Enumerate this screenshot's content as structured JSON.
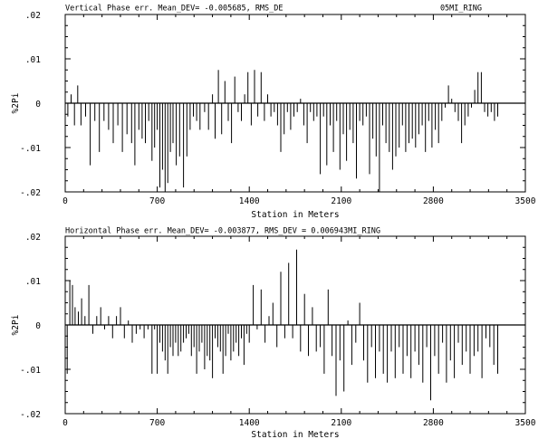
{
  "chart_data": [
    {
      "type": "bar",
      "title": "Vertical   Phase err.   Mean_DEV= -0.005685, RMS_DE",
      "title_right": "05MI_RING",
      "xlabel": "Station in Meters",
      "ylabel": "%2Pi",
      "xlim": [
        0,
        3500
      ],
      "ylim": [
        -0.02,
        0.02
      ],
      "xticks": [
        0,
        700,
        1400,
        2100,
        2800,
        3500
      ],
      "xtick_labels": [
        "0",
        "700",
        "1400",
        "2100",
        "2800",
        "3500"
      ],
      "yticks": [
        0.02,
        0.01,
        0,
        -0.01,
        -0.02
      ],
      "ytick_labels": [
        ".02",
        ".01",
        "0",
        "-.01",
        "-.02"
      ],
      "grid": false,
      "x": [
        20,
        45,
        70,
        95,
        120,
        155,
        190,
        225,
        260,
        295,
        330,
        365,
        400,
        435,
        470,
        505,
        530,
        560,
        585,
        610,
        635,
        660,
        680,
        700,
        720,
        740,
        760,
        780,
        800,
        820,
        845,
        870,
        900,
        925,
        950,
        975,
        1000,
        1025,
        1060,
        1090,
        1120,
        1140,
        1165,
        1190,
        1215,
        1240,
        1265,
        1290,
        1315,
        1340,
        1365,
        1390,
        1415,
        1440,
        1465,
        1490,
        1515,
        1540,
        1565,
        1590,
        1615,
        1640,
        1665,
        1690,
        1715,
        1740,
        1765,
        1790,
        1815,
        1840,
        1865,
        1890,
        1915,
        1940,
        1965,
        1990,
        2015,
        2040,
        2065,
        2090,
        2115,
        2140,
        2165,
        2190,
        2215,
        2240,
        2265,
        2290,
        2315,
        2340,
        2365,
        2390,
        2415,
        2440,
        2465,
        2490,
        2515,
        2540,
        2565,
        2590,
        2615,
        2640,
        2665,
        2690,
        2715,
        2740,
        2765,
        2790,
        2815,
        2840,
        2865,
        2890,
        2915,
        2940,
        2965,
        2990,
        3015,
        3040,
        3065,
        3090,
        3115,
        3140,
        3165,
        3190,
        3215,
        3240,
        3265,
        3290
      ],
      "values": [
        -0.003,
        0.002,
        -0.005,
        0.004,
        -0.005,
        -0.003,
        -0.014,
        -0.004,
        -0.011,
        -0.004,
        -0.006,
        -0.009,
        -0.005,
        -0.011,
        -0.007,
        -0.009,
        -0.014,
        -0.006,
        -0.008,
        -0.009,
        -0.004,
        -0.013,
        -0.01,
        -0.006,
        -0.019,
        -0.015,
        -0.02,
        -0.018,
        -0.011,
        -0.009,
        -0.014,
        -0.012,
        -0.019,
        -0.012,
        -0.006,
        -0.003,
        -0.004,
        -0.006,
        -0.002,
        -0.006,
        0.002,
        -0.008,
        0.0075,
        -0.007,
        0.005,
        -0.004,
        -0.009,
        0.006,
        -0.002,
        -0.004,
        0.002,
        0.007,
        -0.005,
        0.0075,
        -0.003,
        0.007,
        -0.004,
        0.002,
        -0.003,
        -0.002,
        -0.005,
        -0.011,
        -0.007,
        -0.002,
        -0.006,
        -0.003,
        -0.002,
        0.001,
        -0.005,
        -0.009,
        -0.002,
        -0.004,
        -0.003,
        -0.016,
        -0.003,
        -0.014,
        -0.005,
        -0.011,
        -0.004,
        -0.015,
        -0.007,
        -0.013,
        -0.006,
        -0.009,
        -0.017,
        -0.004,
        -0.005,
        -0.003,
        -0.016,
        -0.008,
        -0.012,
        -0.02,
        -0.005,
        -0.009,
        -0.011,
        -0.015,
        -0.012,
        -0.01,
        -0.005,
        -0.011,
        -0.009,
        -0.008,
        -0.01,
        -0.007,
        -0.005,
        -0.011,
        -0.004,
        -0.01,
        -0.006,
        -0.009,
        -0.004,
        -0.001,
        0.004,
        0.001,
        -0.002,
        -0.004,
        -0.009,
        -0.005,
        -0.003,
        -0.001,
        0.003,
        0.007,
        0.007,
        -0.002,
        -0.003,
        -0.002,
        -0.004,
        -0.003
      ]
    },
    {
      "type": "bar",
      "title": "Horizontal Phase err.   Mean_DEV= -0.003877, RMS_DEV = 0.006943MI_RING",
      "title_right": "",
      "xlabel": "Station in Meters",
      "ylabel": "%2Pi",
      "xlim": [
        0,
        3500
      ],
      "ylim": [
        -0.02,
        0.02
      ],
      "xticks": [
        0,
        700,
        1400,
        2100,
        2800,
        3500
      ],
      "xtick_labels": [
        "0",
        "700",
        "1400",
        "2100",
        "2800",
        "3500"
      ],
      "yticks": [
        0.02,
        0.01,
        0,
        -0.01,
        -0.02
      ],
      "ytick_labels": [
        ".02",
        ".01",
        "0",
        "-.01",
        "-.02"
      ],
      "grid": false,
      "x": [
        15,
        35,
        55,
        75,
        100,
        125,
        150,
        180,
        210,
        240,
        270,
        300,
        330,
        360,
        390,
        420,
        450,
        480,
        510,
        540,
        570,
        600,
        630,
        660,
        680,
        700,
        720,
        740,
        760,
        780,
        800,
        820,
        840,
        860,
        880,
        900,
        920,
        940,
        960,
        980,
        1000,
        1020,
        1040,
        1060,
        1080,
        1100,
        1120,
        1140,
        1160,
        1180,
        1200,
        1220,
        1240,
        1260,
        1280,
        1300,
        1320,
        1340,
        1360,
        1380,
        1400,
        1430,
        1460,
        1490,
        1520,
        1550,
        1580,
        1610,
        1640,
        1670,
        1700,
        1730,
        1760,
        1790,
        1820,
        1850,
        1880,
        1910,
        1940,
        1970,
        2000,
        2030,
        2060,
        2090,
        2120,
        2150,
        2180,
        2210,
        2240,
        2270,
        2300,
        2330,
        2360,
        2390,
        2420,
        2450,
        2480,
        2510,
        2540,
        2570,
        2600,
        2630,
        2660,
        2690,
        2720,
        2750,
        2780,
        2810,
        2840,
        2870,
        2900,
        2930,
        2960,
        2990,
        3020,
        3050,
        3080,
        3110,
        3140,
        3170,
        3200,
        3230,
        3260,
        3290
      ],
      "values": [
        -0.011,
        0.01,
        0.009,
        0.004,
        0.003,
        0.006,
        0.002,
        0.009,
        -0.002,
        0.002,
        0.004,
        -0.001,
        0.002,
        -0.003,
        0.002,
        0.004,
        -0.003,
        0.001,
        -0.004,
        -0.002,
        -0.001,
        -0.003,
        -0.001,
        -0.011,
        -0.001,
        -0.011,
        -0.004,
        -0.006,
        -0.008,
        -0.011,
        -0.005,
        -0.007,
        -0.004,
        -0.007,
        -0.006,
        -0.004,
        -0.003,
        -0.002,
        -0.007,
        -0.005,
        -0.011,
        -0.006,
        -0.004,
        -0.01,
        -0.007,
        -0.008,
        -0.012,
        -0.003,
        -0.005,
        -0.006,
        -0.011,
        -0.007,
        -0.002,
        -0.008,
        -0.006,
        -0.004,
        -0.007,
        -0.003,
        -0.009,
        -0.002,
        -0.004,
        0.009,
        -0.001,
        0.008,
        -0.004,
        0.002,
        0.005,
        -0.005,
        0.012,
        -0.003,
        0.014,
        -0.003,
        0.017,
        -0.006,
        0.007,
        -0.007,
        0.004,
        -0.006,
        -0.005,
        -0.011,
        0.008,
        -0.007,
        -0.016,
        -0.008,
        -0.015,
        0.001,
        -0.009,
        -0.004,
        0.005,
        -0.008,
        -0.013,
        -0.005,
        -0.012,
        -0.006,
        -0.011,
        -0.013,
        -0.006,
        -0.012,
        -0.005,
        -0.011,
        -0.007,
        -0.012,
        -0.006,
        -0.009,
        -0.013,
        -0.005,
        -0.017,
        -0.007,
        -0.011,
        -0.004,
        -0.013,
        -0.008,
        -0.012,
        -0.004,
        -0.009,
        -0.006,
        -0.011,
        -0.007,
        -0.006,
        -0.012,
        -0.003,
        -0.005,
        -0.009,
        -0.011
      ]
    }
  ]
}
